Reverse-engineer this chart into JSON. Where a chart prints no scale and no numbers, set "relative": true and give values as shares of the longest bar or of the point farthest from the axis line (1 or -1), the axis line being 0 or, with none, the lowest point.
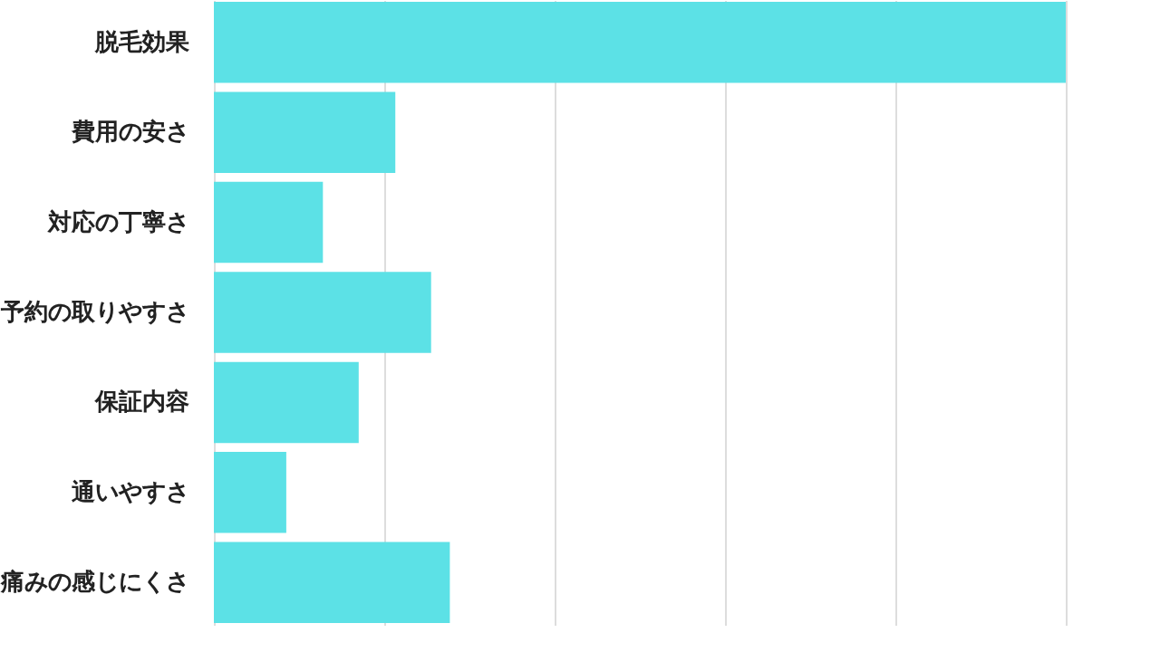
{
  "chart_data": {
    "type": "bar",
    "orientation": "horizontal",
    "relative": true,
    "grid": "x",
    "categories": [
      "脱毛効果",
      "費用の安さ",
      "対応の丁寧さ",
      "予約の取りやすさ",
      "保証内容",
      "通いやすさ",
      "痛みの感じにくさ"
    ],
    "values": [
      1,
      0.213,
      0.128,
      0.255,
      0.17,
      0.085,
      0.277
    ],
    "color": "#5ce1e6"
  }
}
